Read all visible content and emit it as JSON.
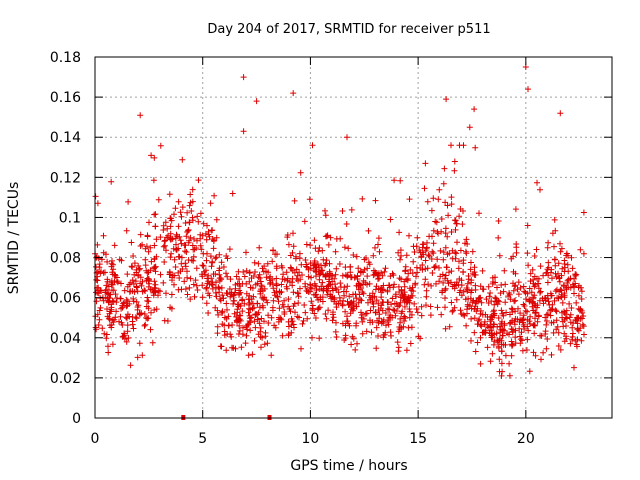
{
  "chart_data": {
    "type": "scatter",
    "title": "Day 204 of 2017, SRMTID for receiver p511",
    "xlabel": "GPS time / hours",
    "ylabel": "SRMTID / TECUs",
    "xlim": [
      0,
      24
    ],
    "ylim": [
      0,
      0.18
    ],
    "xticks": [
      0,
      5,
      10,
      15,
      20
    ],
    "xtick_labels": [
      "0",
      "5",
      "10",
      "15",
      "20"
    ],
    "yticks": [
      0,
      0.02,
      0.04,
      0.06,
      0.08,
      0.1,
      0.12,
      0.14,
      0.16,
      0.18
    ],
    "ytick_labels": [
      "0",
      "0.02",
      "0.04",
      "0.06",
      "0.08",
      "0.1",
      "0.12",
      "0.14",
      "0.16",
      "0.18"
    ],
    "grid": true,
    "marker": "plus",
    "series_color": "#dd0000",
    "x_range_of_points": [
      0,
      22.7
    ],
    "profile": {
      "hours": [
        0,
        1,
        2,
        3,
        4,
        5,
        6,
        7,
        8,
        9,
        10,
        11,
        12,
        13,
        14,
        15,
        16,
        17,
        18,
        19,
        20,
        21,
        22,
        22.7
      ],
      "center": [
        0.062,
        0.058,
        0.062,
        0.078,
        0.085,
        0.085,
        0.058,
        0.056,
        0.058,
        0.066,
        0.068,
        0.065,
        0.06,
        0.06,
        0.058,
        0.066,
        0.082,
        0.075,
        0.05,
        0.048,
        0.058,
        0.062,
        0.058,
        0.058
      ],
      "spread": [
        0.02,
        0.02,
        0.024,
        0.026,
        0.024,
        0.024,
        0.02,
        0.02,
        0.02,
        0.022,
        0.022,
        0.02,
        0.02,
        0.02,
        0.02,
        0.022,
        0.028,
        0.026,
        0.02,
        0.02,
        0.022,
        0.024,
        0.022,
        0.022
      ]
    },
    "highlighted_points": [
      {
        "x": 6.9,
        "y": 0.17
      },
      {
        "x": 7.5,
        "y": 0.158
      },
      {
        "x": 9.2,
        "y": 0.162
      },
      {
        "x": 16.3,
        "y": 0.159
      },
      {
        "x": 20.0,
        "y": 0.175
      },
      {
        "x": 20.1,
        "y": 0.164
      },
      {
        "x": 21.6,
        "y": 0.152
      },
      {
        "x": 2.1,
        "y": 0.151
      },
      {
        "x": 17.6,
        "y": 0.154
      },
      {
        "x": 11.7,
        "y": 0.14
      },
      {
        "x": 6.9,
        "y": 0.143
      },
      {
        "x": 17.4,
        "y": 0.145
      }
    ],
    "baseline_markers": [
      {
        "x": 4.1,
        "y": 0
      },
      {
        "x": 8.1,
        "y": 0
      }
    ]
  }
}
